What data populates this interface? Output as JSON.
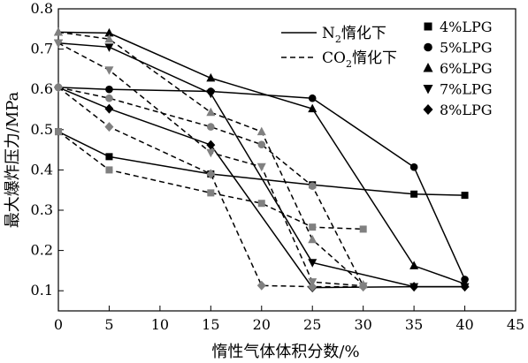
{
  "chart_data": {
    "type": "line",
    "xlabel": "惰性气体体积分数/%",
    "ylabel": "最大爆炸压力/MPa",
    "xlim": [
      0,
      45
    ],
    "ylim": [
      0.05,
      0.8
    ],
    "xticks": [
      0,
      5,
      10,
      15,
      20,
      25,
      30,
      35,
      40,
      45
    ],
    "yticks": [
      0.1,
      0.2,
      0.3,
      0.4,
      0.5,
      0.6,
      0.7,
      0.8
    ],
    "xtick_labels": [
      "0",
      "5",
      "10",
      "15",
      "20",
      "25",
      "30",
      "35",
      "40",
      "45"
    ],
    "ytick_labels": [
      "0.1",
      "0.2",
      "0.3",
      "0.4",
      "0.5",
      "0.6",
      "0.7",
      "0.8"
    ],
    "grid": false,
    "legend_position": "top-right",
    "line_legend": [
      {
        "style": "solid",
        "text_main": "N",
        "text_sub": "2",
        "text_rest": "惰化下"
      },
      {
        "style": "dashed",
        "text_main": "CO",
        "text_sub": "2",
        "text_rest": "惰化下"
      }
    ],
    "series": [
      {
        "name": "4%LPG",
        "marker": "square",
        "inert_gas": "N2",
        "style": "solid",
        "color": "#000000",
        "x": [
          0,
          5,
          15,
          25,
          35,
          40
        ],
        "y": [
          0.495,
          0.433,
          0.39,
          0.363,
          0.34,
          0.337
        ]
      },
      {
        "name": "5%LPG",
        "marker": "circle",
        "inert_gas": "N2",
        "style": "solid",
        "color": "#000000",
        "x": [
          0,
          5,
          15,
          25,
          35,
          40
        ],
        "y": [
          0.605,
          0.6,
          0.595,
          0.578,
          0.407,
          0.128
        ]
      },
      {
        "name": "6%LPG",
        "marker": "triangle-up",
        "inert_gas": "N2",
        "style": "solid",
        "color": "#000000",
        "x": [
          0,
          5,
          15,
          25,
          35,
          40
        ],
        "y": [
          0.742,
          0.74,
          0.628,
          0.552,
          0.162,
          0.117
        ]
      },
      {
        "name": "7%LPG",
        "marker": "triangle-down",
        "inert_gas": "N2",
        "style": "solid",
        "color": "#000000",
        "x": [
          0,
          5,
          15,
          25,
          35,
          40
        ],
        "y": [
          0.715,
          0.705,
          0.59,
          0.17,
          0.11,
          0.11
        ]
      },
      {
        "name": "8%LPG",
        "marker": "diamond",
        "inert_gas": "N2",
        "style": "solid",
        "color": "#000000",
        "x": [
          0,
          5,
          15,
          25,
          35,
          40
        ],
        "y": [
          0.605,
          0.552,
          0.462,
          0.108,
          0.11,
          0.11
        ]
      },
      {
        "name": "4%LPG",
        "marker": "square",
        "inert_gas": "CO2",
        "style": "dashed",
        "color": "#808080",
        "x": [
          0,
          5,
          15,
          20,
          25,
          30
        ],
        "y": [
          0.495,
          0.4,
          0.343,
          0.317,
          0.258,
          0.253
        ]
      },
      {
        "name": "5%LPG",
        "marker": "circle",
        "inert_gas": "CO2",
        "style": "dashed",
        "color": "#808080",
        "x": [
          0,
          5,
          15,
          20,
          25,
          30
        ],
        "y": [
          0.605,
          0.578,
          0.507,
          0.463,
          0.36,
          0.112
        ]
      },
      {
        "name": "6%LPG",
        "marker": "triangle-up",
        "inert_gas": "CO2",
        "style": "dashed",
        "color": "#808080",
        "x": [
          0,
          5,
          15,
          20,
          25,
          30
        ],
        "y": [
          0.742,
          0.725,
          0.543,
          0.495,
          0.227,
          0.115
        ]
      },
      {
        "name": "7%LPG",
        "marker": "triangle-down",
        "inert_gas": "CO2",
        "style": "dashed",
        "color": "#808080",
        "x": [
          0,
          5,
          15,
          20,
          25,
          30
        ],
        "y": [
          0.715,
          0.648,
          0.443,
          0.408,
          0.122,
          0.112
        ]
      },
      {
        "name": "8%LPG",
        "marker": "diamond",
        "inert_gas": "CO2",
        "style": "dashed",
        "color": "#808080",
        "x": [
          0,
          5,
          15,
          20,
          25,
          30
        ],
        "y": [
          0.605,
          0.507,
          0.39,
          0.113,
          0.11,
          0.11
        ]
      }
    ],
    "marker_legend": [
      {
        "marker": "square",
        "label": "4%LPG"
      },
      {
        "marker": "circle",
        "label": "5%LPG"
      },
      {
        "marker": "triangle-up",
        "label": "6%LPG"
      },
      {
        "marker": "triangle-down",
        "label": "7%LPG"
      },
      {
        "marker": "diamond",
        "label": "8%LPG"
      }
    ]
  }
}
